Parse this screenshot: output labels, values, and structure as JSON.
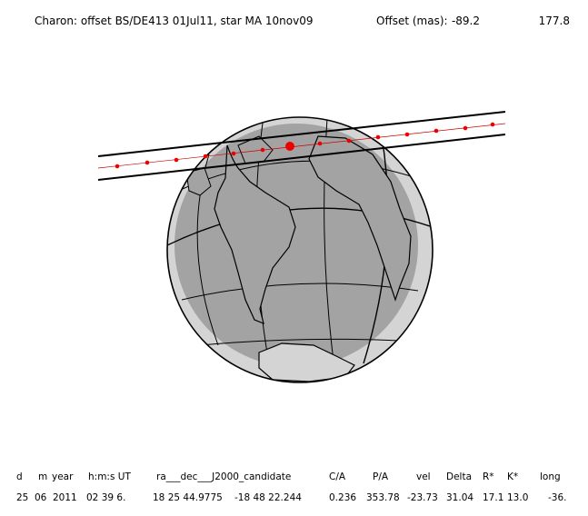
{
  "header": {
    "title": "Charon: offset BS/DE413 01Jul11, star MA 10nov09",
    "offset_label": "Offset (mas):",
    "offsets": [
      "-89.2",
      "177.8"
    ]
  },
  "table": {
    "columns": [
      "d",
      "m",
      "year",
      "h:m:s UT",
      "ra___dec___J2000_candidate",
      "C/A",
      "P/A",
      "vel",
      "Delta",
      "R*",
      "K*",
      "long"
    ],
    "rows": [
      [
        "25",
        "06",
        "2011",
        "02 39 6.",
        "18 25 44.9775",
        "-18 48 22.244",
        "0.236",
        "353.78",
        "-23.73",
        "31.04",
        "17.1",
        "13.0",
        "-36."
      ]
    ]
  }
}
